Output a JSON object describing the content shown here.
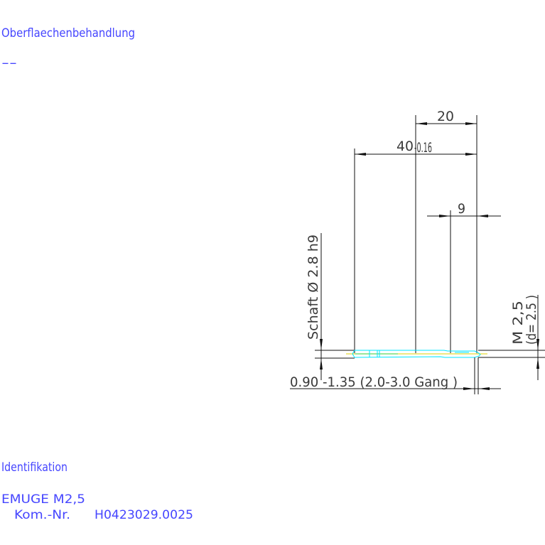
{
  "header": {
    "surface_label": "Oberflaechenbehandlung",
    "surface_value": "--"
  },
  "drawing": {
    "dim_20": "20",
    "dim_40": "40",
    "dim_40_tolerance": "-0.16",
    "dim_9": "9",
    "shank_label": "Schaft  Ø 2.8  h9",
    "thread_label": "M  2,5",
    "thread_diameter": "(d= 2.5 )",
    "chamfer_label": "0.90 -1.35 (2.0-3.0  Gang   )",
    "colors": {
      "tool_outline": "#00e5ff",
      "centerline": "#e0d000",
      "text": "#4646ff"
    }
  },
  "footer": {
    "ident_label": "Identifikation",
    "brand_line": "EMUGE    M2,5",
    "kom_label": "Kom.-Nr.",
    "kom_value": "H0423029.0025"
  }
}
